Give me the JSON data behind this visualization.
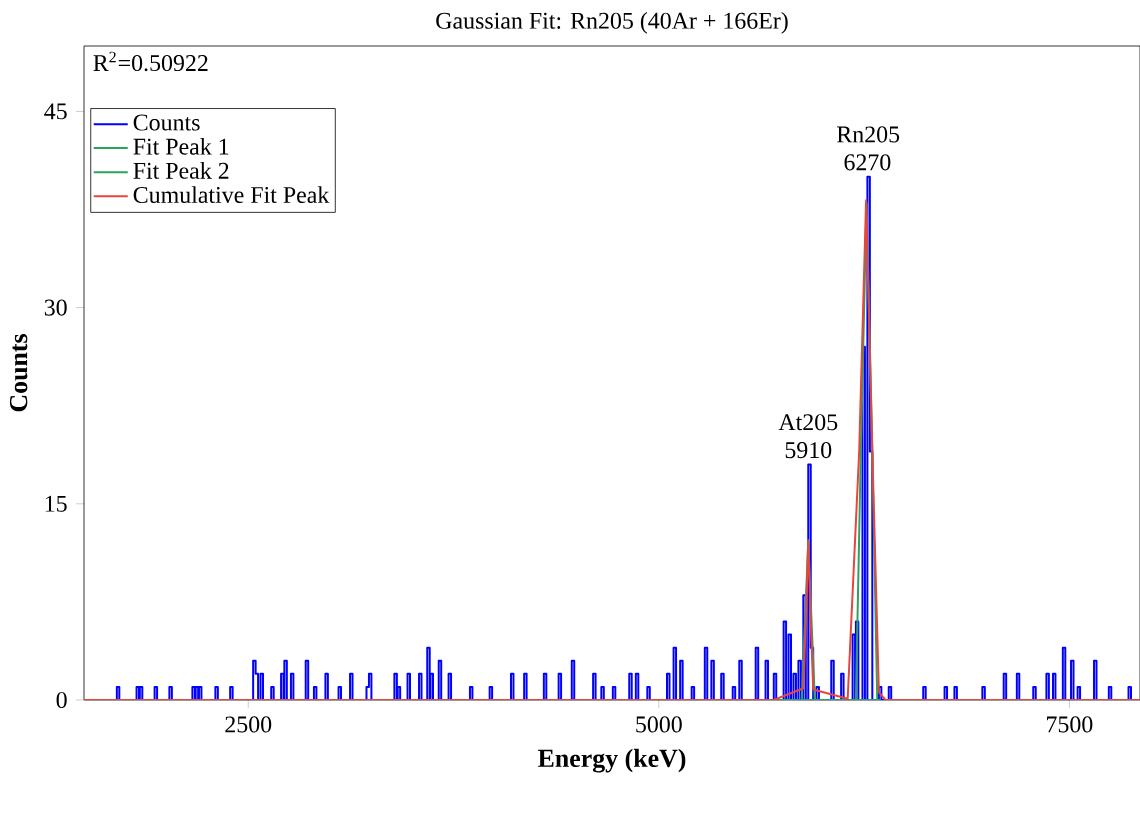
{
  "chart_data": {
    "type": "line",
    "title": "Gaussian Fit: Rn205 (40Ar + 166Er)",
    "xlabel": "Energy (keV)",
    "ylabel": "Counts",
    "xlim": [
      1500,
      7930
    ],
    "ylim": [
      0,
      50
    ],
    "xticks": [
      2500,
      5000,
      7500
    ],
    "yticks": [
      0,
      15,
      30,
      45
    ],
    "legend": "top left",
    "marker": "none",
    "annotations": [
      "R$^{2}$=0.50922",
      {
        "text": "At205 5910",
        "x": 5910,
        "y": 18
      },
      {
        "text": "Rn205 6270",
        "x": 6270,
        "y": 40
      }
    ],
    "series": [
      {
        "name": "Counts",
        "type": "step",
        "color": "#0000ff",
        "x": [
          1500,
          1700,
          1715,
          1820,
          1835,
          1840,
          1855,
          1930,
          1945,
          2020,
          2035,
          2160,
          2175,
          2180,
          2195,
          2200,
          2215,
          2300,
          2315,
          2390,
          2405,
          2530,
          2545,
          2560,
          2575,
          2590,
          2640,
          2655,
          2700,
          2715,
          2720,
          2735,
          2760,
          2775,
          2850,
          2865,
          2900,
          2915,
          2970,
          2985,
          3050,
          3065,
          3120,
          3135,
          3220,
          3235,
          3250,
          3390,
          3405,
          3410,
          3425,
          3470,
          3485,
          3540,
          3555,
          3590,
          3605,
          3610,
          3625,
          3660,
          3675,
          3720,
          3735,
          3850,
          3865,
          3970,
          3985,
          4100,
          4115,
          4180,
          4195,
          4300,
          4315,
          4390,
          4405,
          4470,
          4485,
          4600,
          4615,
          4650,
          4665,
          4720,
          4735,
          4820,
          4835,
          4860,
          4875,
          4930,
          4945,
          5050,
          5065,
          5090,
          5105,
          5130,
          5145,
          5200,
          5215,
          5280,
          5295,
          5320,
          5335,
          5380,
          5395,
          5450,
          5465,
          5490,
          5505,
          5590,
          5605,
          5650,
          5665,
          5700,
          5715,
          5760,
          5775,
          5790,
          5805,
          5820,
          5835,
          5850,
          5865,
          5880,
          5895,
          5910,
          5925,
          5940,
          5960,
          5975,
          6050,
          6065,
          6110,
          6125,
          6180,
          6195,
          6200,
          6215,
          6240,
          6255,
          6270,
          6285,
          6300,
          6340,
          6355,
          6400,
          6415,
          6610,
          6625,
          6740,
          6755,
          6800,
          6815,
          6970,
          6985,
          7100,
          7115,
          7180,
          7195,
          7280,
          7295,
          7360,
          7375,
          7400,
          7415,
          7460,
          7475,
          7510,
          7525,
          7550,
          7565,
          7650,
          7665,
          7740,
          7755,
          7860,
          7875,
          7930
        ],
        "values": [
          0,
          1,
          0,
          1,
          0,
          1,
          0,
          1,
          0,
          1,
          0,
          1,
          0,
          1,
          0,
          1,
          0,
          1,
          0,
          1,
          0,
          3,
          2,
          0,
          2,
          0,
          1,
          0,
          2,
          0,
          3,
          0,
          2,
          0,
          3,
          0,
          1,
          0,
          2,
          0,
          1,
          0,
          2,
          0,
          1,
          2,
          0,
          2,
          0,
          1,
          0,
          2,
          0,
          2,
          0,
          4,
          0,
          2,
          0,
          3,
          0,
          2,
          0,
          1,
          0,
          1,
          0,
          2,
          0,
          2,
          0,
          2,
          0,
          2,
          0,
          3,
          0,
          2,
          0,
          1,
          0,
          1,
          0,
          2,
          0,
          2,
          0,
          1,
          0,
          2,
          0,
          4,
          0,
          3,
          0,
          1,
          0,
          4,
          0,
          3,
          0,
          2,
          0,
          1,
          0,
          3,
          0,
          4,
          0,
          3,
          0,
          2,
          0,
          6,
          0,
          5,
          0,
          2,
          0,
          3,
          0,
          8,
          0,
          18,
          4,
          0,
          1,
          0,
          3,
          0,
          2,
          0,
          5,
          0,
          6,
          0,
          27,
          0,
          40,
          19,
          0,
          1,
          0,
          1,
          0,
          1,
          0,
          1,
          0,
          1,
          0,
          1,
          0,
          2,
          0,
          2,
          0,
          1,
          0,
          2,
          0,
          2,
          0,
          4,
          0,
          3,
          0,
          1,
          0,
          3,
          0,
          1,
          0,
          1,
          0,
          0
        ]
      },
      {
        "name": "Fit Peak 1",
        "type": "line",
        "color": "#2ca25f",
        "x": [
          5700,
          5870,
          5890,
          5910,
          5930,
          5950,
          6350
        ],
        "values": [
          0,
          0,
          6,
          12.2,
          6,
          0,
          0
        ]
      },
      {
        "name": "Fit Peak 2",
        "type": "line",
        "color": "#2ca25f",
        "x": [
          5700,
          6200,
          6230,
          6265,
          6300,
          6330,
          6350
        ],
        "values": [
          0,
          0,
          19,
          38,
          19,
          0,
          0
        ]
      },
      {
        "name": "Cumulative Fit Peak",
        "type": "line",
        "color": "#e8453c",
        "x": [
          1500,
          5700,
          5880,
          5895,
          5910,
          5925,
          5940,
          6150,
          6220,
          6262,
          6300,
          6340,
          6380,
          7930
        ],
        "values": [
          0,
          0,
          0.9,
          6,
          12.2,
          6,
          0.8,
          0.1,
          19,
          38.2,
          19,
          0.6,
          0,
          0
        ]
      }
    ]
  }
}
